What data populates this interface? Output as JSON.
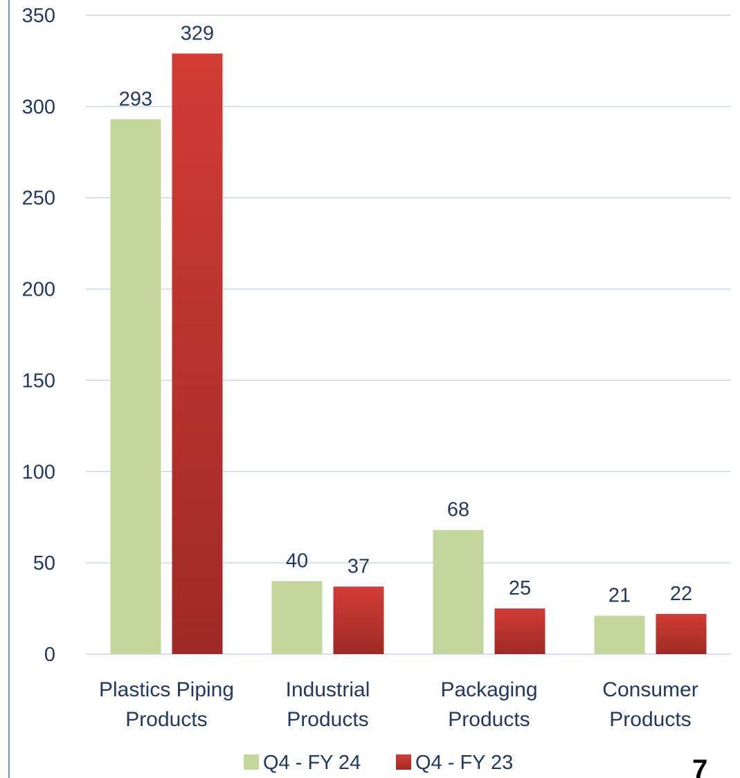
{
  "chart_data": {
    "type": "bar",
    "categories": [
      [
        "Plastics Piping",
        "Products"
      ],
      [
        "Industrial",
        "Products"
      ],
      [
        "Packaging",
        "Products"
      ],
      [
        "Consumer",
        "Products"
      ]
    ],
    "series": [
      {
        "name": "Q4 - FY 24",
        "values": [
          293,
          40,
          68,
          21
        ],
        "color": "#c3d69b"
      },
      {
        "name": "Q4 - FY 23",
        "values": [
          329,
          37,
          25,
          22
        ],
        "color": "#c0392f"
      }
    ],
    "y_ticks": [
      0,
      50,
      100,
      150,
      200,
      250,
      300,
      350
    ],
    "ylim": [
      0,
      350
    ],
    "grid": true,
    "gridline_color": "#c9d7ea",
    "legend_position": "bottom",
    "data_labels": true
  },
  "page_number": "7"
}
